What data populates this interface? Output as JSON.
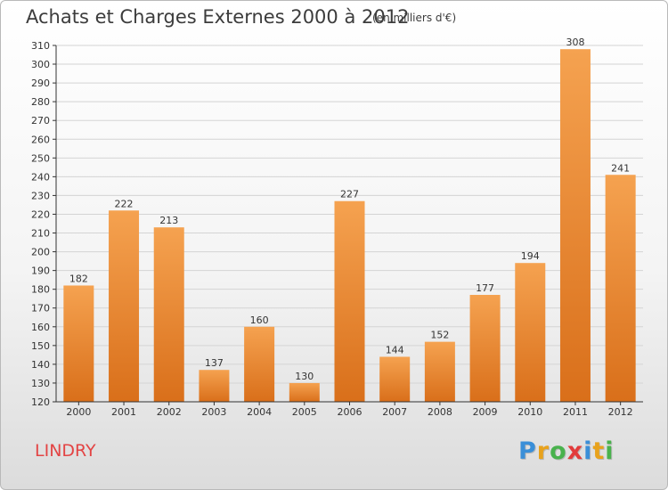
{
  "header": {
    "title": "Achats et Charges Externes 2000 à 2012",
    "subtitle": "(en milliers d'€)"
  },
  "footer": {
    "place": "LINDRY",
    "brand": "Proxiti",
    "brand_letters": [
      {
        "ch": "P",
        "color": "#3a8fd8"
      },
      {
        "ch": "r",
        "color": "#e8a21c"
      },
      {
        "ch": "o",
        "color": "#49b24d"
      },
      {
        "ch": "x",
        "color": "#e23b3b"
      },
      {
        "ch": "i",
        "color": "#3a8fd8"
      },
      {
        "ch": "t",
        "color": "#e8a21c"
      },
      {
        "ch": "i",
        "color": "#49b24d"
      }
    ]
  },
  "colors": {
    "bar_top": "#f5a250",
    "bar_bottom": "#d96f1a",
    "grid": "#d4d4d4",
    "axis": "#333333"
  },
  "chart_data": {
    "type": "bar",
    "categories": [
      "2000",
      "2001",
      "2002",
      "2003",
      "2004",
      "2005",
      "2006",
      "2007",
      "2008",
      "2009",
      "2010",
      "2011",
      "2012"
    ],
    "values": [
      182,
      222,
      213,
      137,
      160,
      130,
      227,
      144,
      152,
      177,
      194,
      308,
      241
    ],
    "ylim": [
      120,
      310
    ],
    "ytick_step": 10,
    "grid": true,
    "title": "Achats et Charges Externes 2000 à 2012",
    "subtitle": "(en milliers d'€)"
  }
}
